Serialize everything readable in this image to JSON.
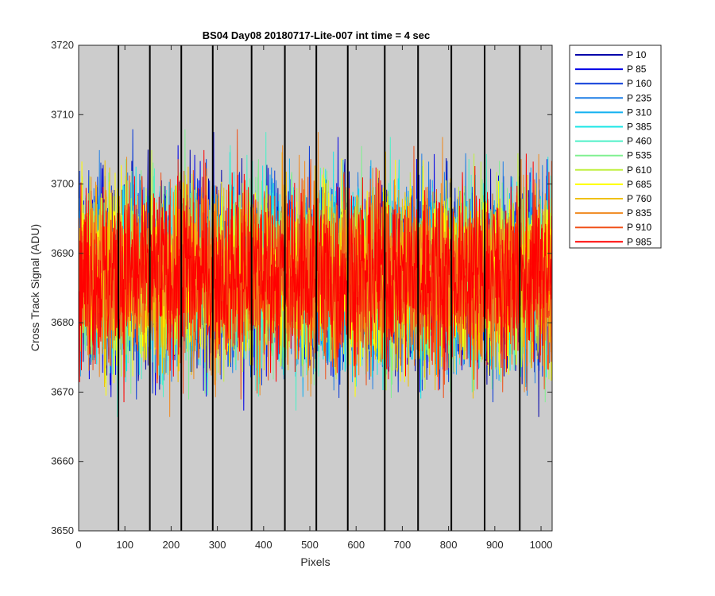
{
  "chart_data": {
    "type": "line",
    "title": "BS04 Day08 20180717-Lite-007 int time = 4 sec",
    "xlabel": "Pixels",
    "ylabel": "Cross Track Signal (ADU)",
    "xlim": [
      0,
      1024
    ],
    "ylim": [
      3650,
      3720
    ],
    "xticks": [
      0,
      100,
      200,
      300,
      400,
      500,
      600,
      700,
      800,
      900,
      1000
    ],
    "yticks": [
      3650,
      3660,
      3670,
      3680,
      3690,
      3700,
      3710,
      3720
    ],
    "background_color": "#cccccc",
    "tap_boundaries": [
      86,
      154,
      222,
      290,
      374,
      446,
      514,
      582,
      662,
      734,
      806,
      878,
      954
    ],
    "legend_position": "outside-right",
    "series_mean": 3687,
    "series_range": [
      3657,
      3719
    ],
    "series": [
      {
        "name": "P 10",
        "color": "#0000aa"
      },
      {
        "name": "P 85",
        "color": "#0000e6"
      },
      {
        "name": "P 160",
        "color": "#0a3ad8"
      },
      {
        "name": "P 235",
        "color": "#1e7fe6"
      },
      {
        "name": "P 310",
        "color": "#12b0f0"
      },
      {
        "name": "P 385",
        "color": "#18e6e6"
      },
      {
        "name": "P 460",
        "color": "#4ef0c8"
      },
      {
        "name": "P 535",
        "color": "#80f090"
      },
      {
        "name": "P 610",
        "color": "#c0f040"
      },
      {
        "name": "P 685",
        "color": "#ffff00"
      },
      {
        "name": "P 760",
        "color": "#f0c000"
      },
      {
        "name": "P 835",
        "color": "#f08a20"
      },
      {
        "name": "P 910",
        "color": "#f05018"
      },
      {
        "name": "P 985",
        "color": "#ff0000"
      }
    ]
  }
}
